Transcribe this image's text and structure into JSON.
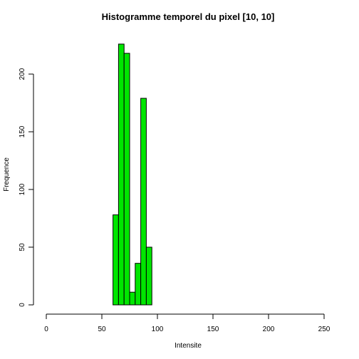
{
  "chart_data": {
    "type": "bar",
    "title": "Histogramme temporel du pixel [10, 10]",
    "xlabel": "Intensite",
    "ylabel": "Frequence",
    "xlim": [
      0,
      250
    ],
    "ylim": [
      0,
      230
    ],
    "x_ticks": [
      0,
      50,
      100,
      150,
      200,
      250
    ],
    "y_ticks": [
      0,
      50,
      100,
      150,
      200
    ],
    "bar_color": "#00e600",
    "bins": [
      {
        "x0": 60,
        "x1": 65,
        "count": 78
      },
      {
        "x0": 65,
        "x1": 70,
        "count": 226
      },
      {
        "x0": 70,
        "x1": 75,
        "count": 218
      },
      {
        "x0": 75,
        "x1": 80,
        "count": 11
      },
      {
        "x0": 80,
        "x1": 85,
        "count": 36
      },
      {
        "x0": 85,
        "x1": 90,
        "count": 179
      },
      {
        "x0": 90,
        "x1": 95,
        "count": 50
      }
    ]
  }
}
